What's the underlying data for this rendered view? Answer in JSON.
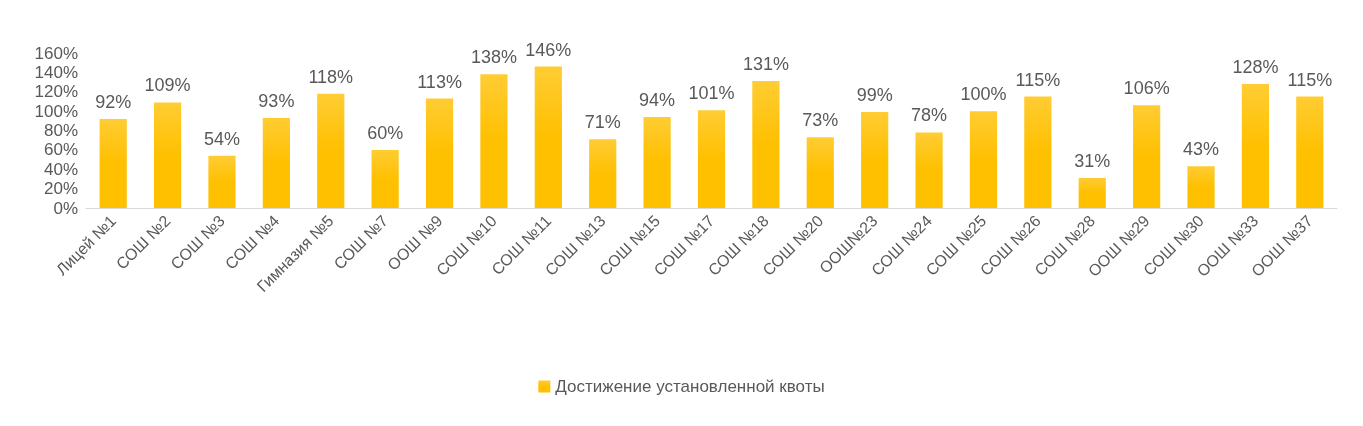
{
  "chart_data": {
    "type": "bar",
    "categories": [
      "Лицей №1",
      "СОШ №2",
      "СОШ №3",
      "СОШ №4",
      "Гимназия №5",
      "СОШ №7",
      "ООШ №9",
      "СОШ №10",
      "СОШ №11",
      "СОШ №13",
      "СОШ №15",
      "СОШ №17",
      "СОШ №18",
      "СОШ №20",
      "ООШ№23",
      "СОШ №24",
      "СОШ №25",
      "СОШ №26",
      "СОШ №28",
      "ООШ №29",
      "СОШ №30",
      "ООШ №33",
      "ООШ №37"
    ],
    "series": [
      {
        "name": "Достижение установленной квоты",
        "color": "#ffc000",
        "values": [
          92,
          109,
          54,
          93,
          118,
          60,
          113,
          138,
          146,
          71,
          94,
          101,
          131,
          73,
          99,
          78,
          100,
          115,
          31,
          106,
          43,
          128,
          115
        ],
        "value_labels": [
          "92%",
          "109%",
          "54%",
          "93%",
          "118%",
          "60%",
          "113%",
          "138%",
          "146%",
          "71%",
          "94%",
          "101%",
          "131%",
          "73%",
          "99%",
          "78%",
          "100%",
          "115%",
          "31%",
          "106%",
          "43%",
          "128%",
          "115%"
        ]
      }
    ],
    "ylim": [
      0,
      160
    ],
    "yticks": [
      {
        "value": 0,
        "label": "0%"
      },
      {
        "value": 20,
        "label": "20%"
      },
      {
        "value": 40,
        "label": "40%"
      },
      {
        "value": 60,
        "label": "60%"
      },
      {
        "value": 80,
        "label": "80%"
      },
      {
        "value": 100,
        "label": "100%"
      },
      {
        "value": 120,
        "label": "120%"
      },
      {
        "value": 140,
        "label": "140%"
      },
      {
        "value": 160,
        "label": "160%"
      }
    ],
    "grid": false,
    "legend": "bottom"
  }
}
